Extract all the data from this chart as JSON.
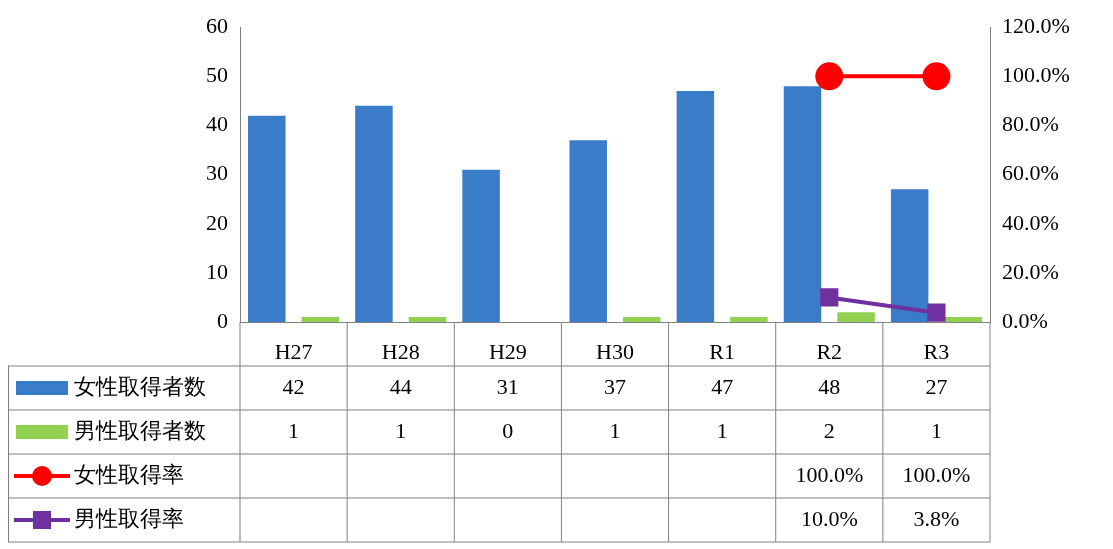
{
  "chart_data": {
    "type": "bar",
    "categories": [
      "H27",
      "H28",
      "H29",
      "H30",
      "R1",
      "R2",
      "R3"
    ],
    "series": [
      {
        "name": "女性取得者数",
        "color": "#3a7cc8",
        "values": [
          42,
          44,
          31,
          37,
          47,
          48,
          27
        ],
        "value_labels": [
          "42",
          "44",
          "31",
          "37",
          "47",
          "48",
          "27"
        ]
      },
      {
        "name": "男性取得者数",
        "color": "#92d050",
        "values": [
          1,
          1,
          0,
          1,
          1,
          2,
          1
        ],
        "value_labels": [
          "1",
          "1",
          "0",
          "1",
          "1",
          "2",
          "1"
        ]
      },
      {
        "name": "女性取得率",
        "type": "line",
        "axis": "y2",
        "marker": "circle",
        "color": "#ff0000",
        "values": [
          null,
          null,
          null,
          null,
          null,
          100,
          100
        ],
        "value_labels": [
          null,
          null,
          null,
          null,
          null,
          "100.0%",
          "100.0%"
        ]
      },
      {
        "name": "男性取得率",
        "type": "line",
        "axis": "y2",
        "marker": "square",
        "color": "#7030a0",
        "values": [
          null,
          null,
          null,
          null,
          null,
          10,
          3.8
        ],
        "value_labels": [
          null,
          null,
          null,
          null,
          null,
          "10.0%",
          "3.8%"
        ]
      }
    ],
    "ylim": [
      0,
      60
    ],
    "yticks": [
      0,
      10,
      20,
      30,
      40,
      50,
      60
    ],
    "y2lim": [
      0,
      120
    ],
    "y2ticks": [
      {
        "value": 0,
        "label": "0.0%"
      },
      {
        "value": 20,
        "label": "20.0%"
      },
      {
        "value": 40,
        "label": "40.0%"
      },
      {
        "value": 60,
        "label": "60.0%"
      },
      {
        "value": 80,
        "label": "80.0%"
      },
      {
        "value": 100,
        "label": "100.0%"
      },
      {
        "value": 120,
        "label": "120.0%"
      }
    ],
    "legend": "bottom"
  }
}
